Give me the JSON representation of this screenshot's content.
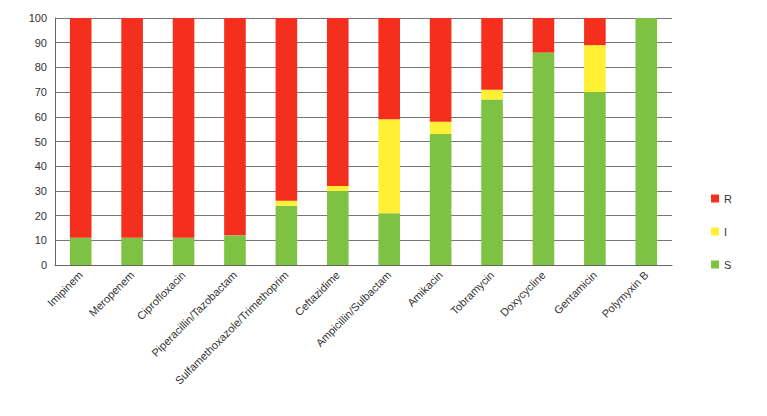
{
  "chart_data": {
    "type": "bar",
    "stacked": true,
    "categories": [
      "Imipinem",
      "Meropenem",
      "Ciprofloxacin",
      "Piperacillin/Tazobactam",
      "Sulfamethoxazole/Trimethoprim",
      "Ceftazidime",
      "Ampicillin/Sulbactam",
      "Amikacin",
      "Tobramycin",
      "Doxycycline",
      "Gentamicin",
      "Polymyxin B"
    ],
    "series": [
      {
        "name": "S",
        "color": "#7dc242",
        "values": [
          11,
          11,
          11,
          12,
          24,
          30,
          21,
          53,
          67,
          86,
          70,
          100
        ]
      },
      {
        "name": "I",
        "color": "#fff035",
        "values": [
          0,
          0,
          0,
          0,
          2,
          2,
          38,
          5,
          4,
          0,
          19,
          0
        ]
      },
      {
        "name": "R",
        "color": "#f52f1e",
        "values": [
          89,
          89,
          89,
          88,
          74,
          68,
          41,
          42,
          29,
          14,
          11,
          0
        ]
      }
    ],
    "ylim": [
      0,
      100
    ],
    "yticks": [
      0,
      10,
      20,
      30,
      40,
      50,
      60,
      70,
      80,
      90,
      100
    ],
    "grid": true,
    "legend": "right"
  }
}
